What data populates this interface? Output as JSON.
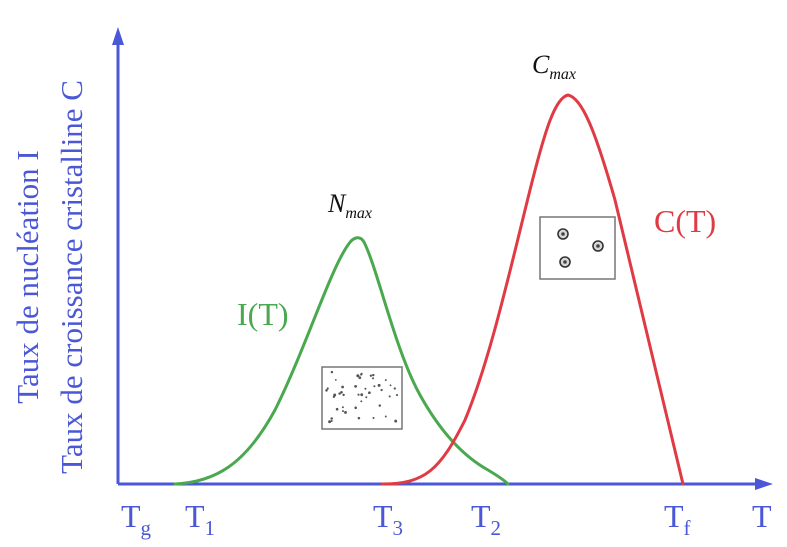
{
  "y_axis": {
    "label_line1": "Taux de nucléation I",
    "label_line2": "Taux de croissance cristalline C"
  },
  "x_axis": {
    "end_label": "T",
    "ticks": [
      {
        "base": "T",
        "sub": "g"
      },
      {
        "base": "T",
        "sub": "1"
      },
      {
        "base": "T",
        "sub": "3"
      },
      {
        "base": "T",
        "sub": "2"
      },
      {
        "base": "T",
        "sub": "f"
      }
    ]
  },
  "curves": {
    "nucleation": {
      "label": "I(T)",
      "peak_base": "N",
      "peak_sub": "max",
      "color": "#4aa84f"
    },
    "growth": {
      "label": "C(T)",
      "peak_base": "C",
      "peak_sub": "max",
      "color": "#e03a45"
    }
  },
  "insets": {
    "nucleation": "many-small-nuclei",
    "growth": "few-large-crystals"
  },
  "colors": {
    "axis": "#4a57d6"
  }
}
